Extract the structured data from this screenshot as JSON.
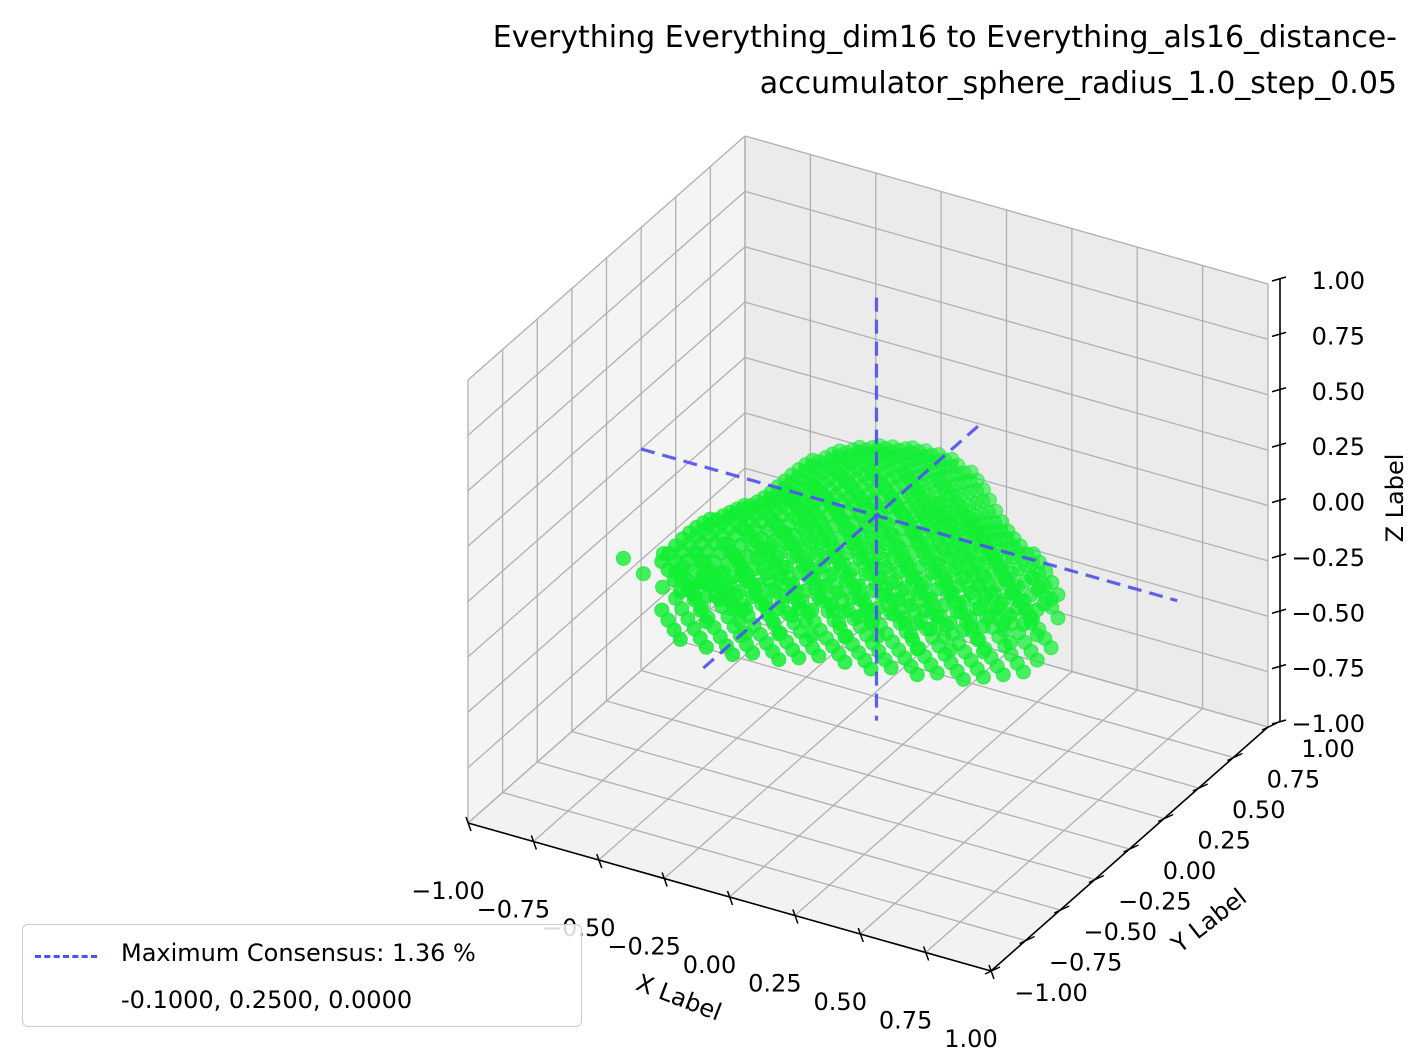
{
  "chart_data": {
    "type": "scatter3d",
    "title": "Everything Everything_dim16 to Everything_als16_distance-accumulator_sphere_radius_1.0_step_0.05",
    "title_lines": [
      "Everything Everything_dim16 to Everything_als16_distance-",
      "accumulator_sphere_radius_1.0_step_0.05"
    ],
    "xlabel": "X Label",
    "ylabel": "Y Label",
    "zlabel": "Z Label",
    "xlim": [
      -1.0,
      1.0
    ],
    "ylim": [
      -1.0,
      1.0
    ],
    "zlim": [
      -1.0,
      1.0
    ],
    "x_ticks": [
      "−1.00",
      "−0.75",
      "−0.50",
      "−0.25",
      "0.00",
      "0.25",
      "0.50",
      "0.75",
      "1.00"
    ],
    "y_ticks": [
      "−1.00",
      "−0.75",
      "−0.50",
      "−0.25",
      "0.00",
      "0.25",
      "0.50",
      "0.75",
      "1.00"
    ],
    "z_ticks": [
      "−1.00",
      "−0.75",
      "−0.50",
      "−0.25",
      "0.00",
      "0.25",
      "0.50",
      "0.75",
      "1.00"
    ],
    "grid": true,
    "point_color": "#11ee33",
    "line_color": "#5050f0",
    "maximum_point": {
      "x": -0.1,
      "y": 0.25,
      "z": 0.0
    },
    "legend": {
      "placement": "lower-left",
      "label": "Maximum Consensus: 1.36 %",
      "coords": "-0.1000, 0.2500, 0.0000"
    }
  }
}
